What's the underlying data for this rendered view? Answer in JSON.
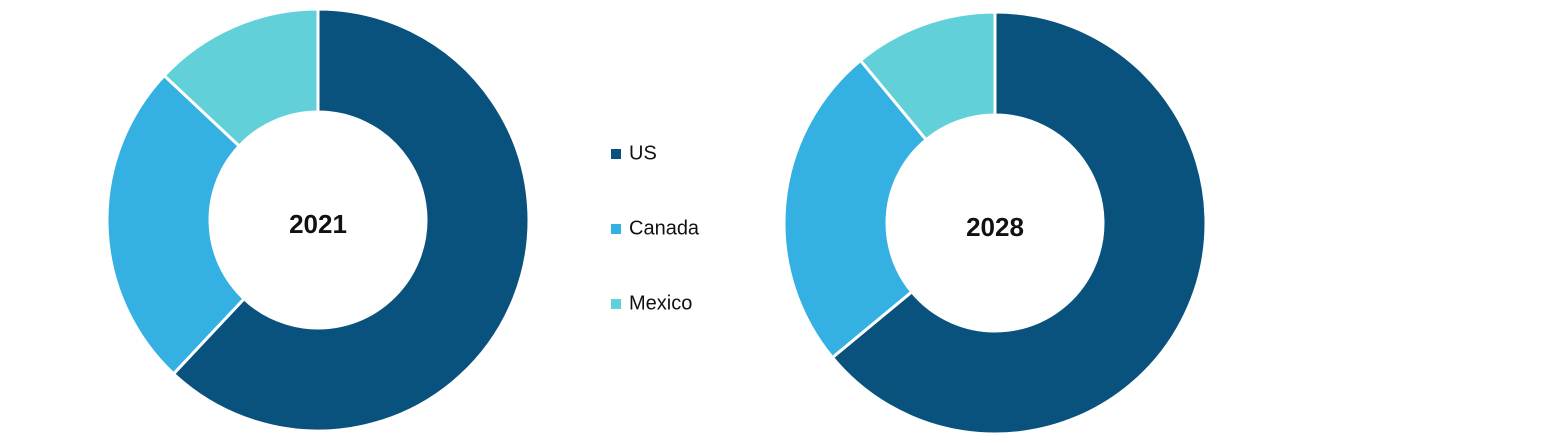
{
  "chart_data": [
    {
      "type": "donut",
      "title": "2021",
      "categories": [
        "US",
        "Canada",
        "Mexico"
      ],
      "colors": [
        "#0a527e",
        "#35b0e2",
        "#62d0d9"
      ],
      "values": [
        62,
        25,
        13
      ]
    },
    {
      "type": "donut",
      "title": "2028",
      "values": [
        64,
        25,
        11
      ]
    }
  ]
}
